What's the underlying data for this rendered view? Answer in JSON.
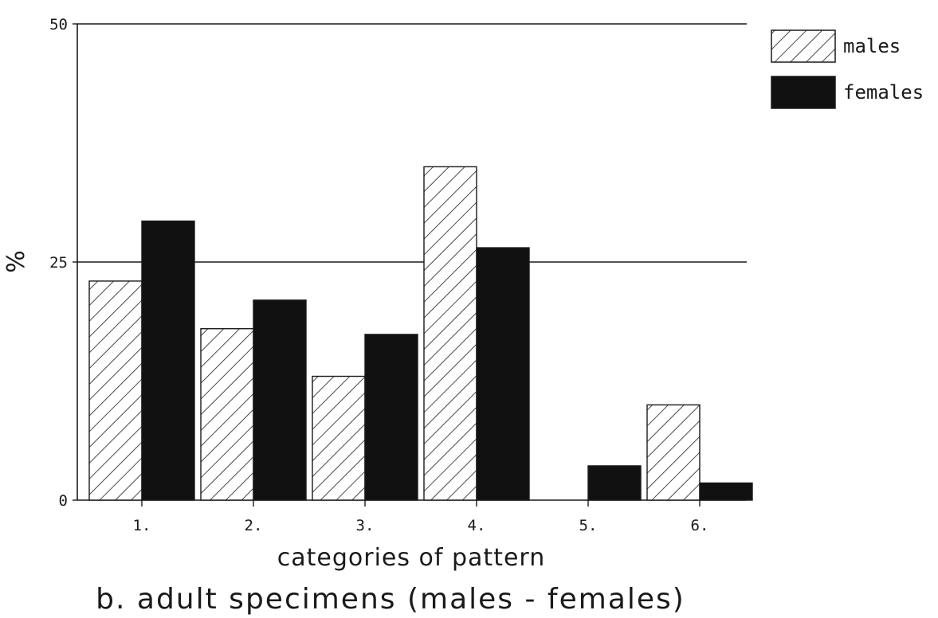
{
  "chart_data": {
    "type": "bar",
    "title": "b. adult specimens (males - females)",
    "xlabel": "categories of pattern",
    "ylabel": "%",
    "ylim": [
      0,
      50
    ],
    "yticks": [
      0,
      25,
      50
    ],
    "grid": "horizontal lines at 25 and 50",
    "legend_placement": "top-right, outside plot",
    "categories": [
      "1.",
      "2.",
      "3.",
      "4.",
      "5.",
      "6."
    ],
    "series": [
      {
        "name": "males",
        "pattern": "diagonal-hatch",
        "color": "#ffffff",
        "values": [
          23,
          18,
          13,
          35,
          0,
          10
        ]
      },
      {
        "name": "females",
        "pattern": "solid",
        "color": "#111111",
        "values": [
          29.3,
          21,
          17.4,
          26.5,
          3.6,
          1.8
        ]
      }
    ]
  }
}
